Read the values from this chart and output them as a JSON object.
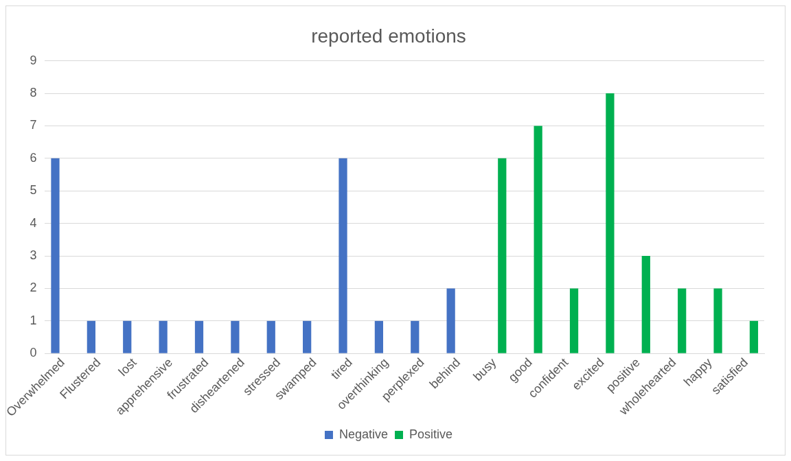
{
  "chart_data": {
    "type": "bar",
    "title": "reported emotions",
    "categories": [
      "Overwhelmed",
      "Flustered",
      "lost",
      "apprehensive",
      "frustrated",
      "disheartened",
      "stressed",
      "swamped",
      "tired",
      "overthinking",
      "perplexed",
      "behind",
      "busy",
      "good",
      "confident",
      "excited",
      "positive",
      "wholehearted",
      "happy",
      "satisfied"
    ],
    "series": [
      {
        "name": "Negative",
        "color": "#4472c4",
        "values": [
          6,
          1,
          1,
          1,
          1,
          1,
          1,
          1,
          6,
          1,
          1,
          2,
          null,
          null,
          null,
          null,
          null,
          null,
          null,
          null
        ]
      },
      {
        "name": "Positive",
        "color": "#00b050",
        "values": [
          null,
          null,
          null,
          null,
          null,
          null,
          null,
          null,
          null,
          null,
          null,
          null,
          6,
          7,
          2,
          8,
          3,
          2,
          2,
          1
        ]
      }
    ],
    "ylim": [
      0,
      9
    ],
    "yticks": [
      0,
      1,
      2,
      3,
      4,
      5,
      6,
      7,
      8,
      9
    ],
    "grid": "y",
    "legend": "bottom"
  }
}
